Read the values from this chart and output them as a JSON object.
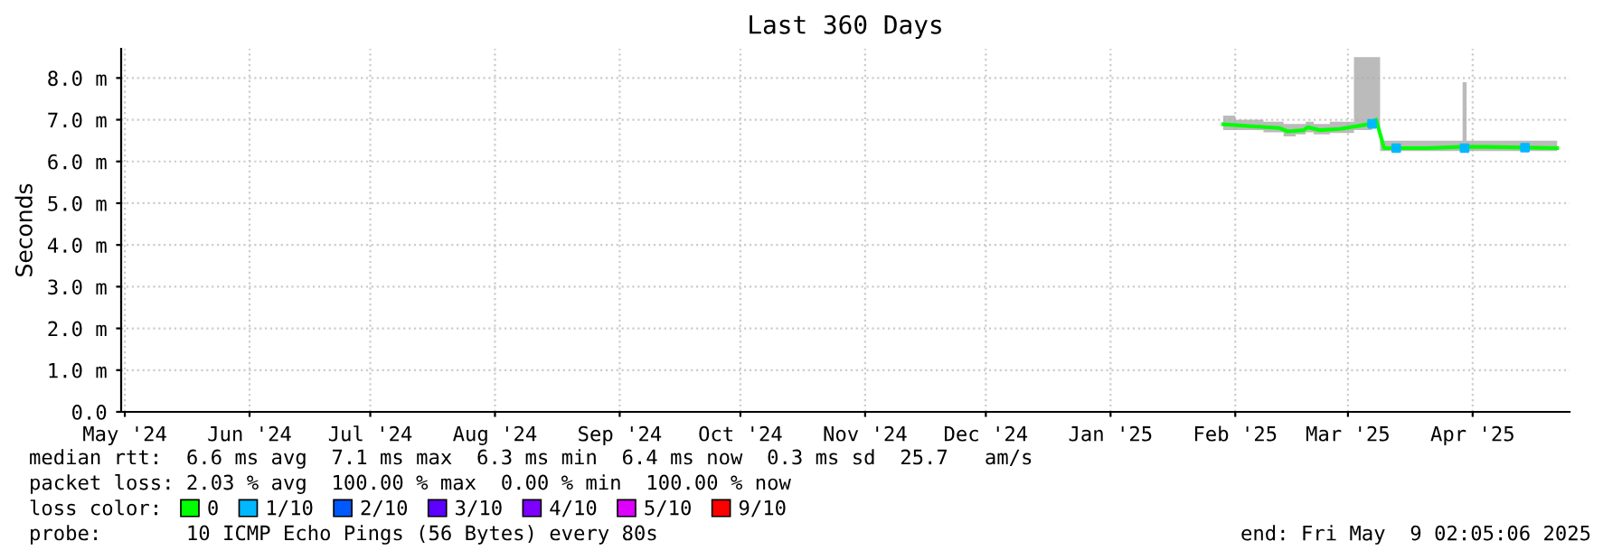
{
  "chart_data": {
    "type": "line",
    "title": "Last 360 Days",
    "ylabel": "Seconds",
    "legend_title": "loss color:",
    "xlim": [
      "2024-05-14T02:05",
      "2025-05-09T02:05"
    ],
    "xticks": [
      {
        "value": "2024-05-15",
        "label": "May '24"
      },
      {
        "value": "2024-06-15",
        "label": "Jun '24"
      },
      {
        "value": "2024-07-15",
        "label": "Jul '24"
      },
      {
        "value": "2024-08-15",
        "label": "Aug '24"
      },
      {
        "value": "2024-09-15",
        "label": "Sep '24"
      },
      {
        "value": "2024-10-15",
        "label": "Oct '24"
      },
      {
        "value": "2024-11-15",
        "label": "Nov '24"
      },
      {
        "value": "2024-12-15",
        "label": "Dec '24"
      },
      {
        "value": "2025-01-15",
        "label": "Jan '25"
      },
      {
        "value": "2025-02-15",
        "label": "Feb '25"
      },
      {
        "value": "2025-03-15",
        "label": "Mar '25"
      },
      {
        "value": "2025-04-15",
        "label": "Apr '25"
      }
    ],
    "ylim": [
      0,
      8.7
    ],
    "yticks": [
      {
        "value": 0,
        "label": "0.0"
      },
      {
        "value": 1,
        "label": "1.0 m"
      },
      {
        "value": 2,
        "label": "2.0 m"
      },
      {
        "value": 3,
        "label": "3.0 m"
      },
      {
        "value": 4,
        "label": "4.0 m"
      },
      {
        "value": 5,
        "label": "5.0 m"
      },
      {
        "value": 6,
        "label": "6.0 m"
      },
      {
        "value": 7,
        "label": "7.0 m"
      },
      {
        "value": 8,
        "label": "8.0 m"
      }
    ],
    "grid": true,
    "legend": "bottom left",
    "marker": "none",
    "line_style": "solid",
    "series": [
      {
        "name": "0",
        "color": "#00ff00",
        "x": [
          "2025-02-12",
          "2025-02-18",
          "2025-02-26",
          "2025-02-28",
          "2025-03-04",
          "2025-03-05",
          "2025-03-08",
          "2025-03-13",
          "2025-03-20",
          "2025-03-22",
          "2025-03-24",
          "2025-04-04",
          "2025-04-12",
          "2025-04-13",
          "2025-04-14",
          "2025-04-18",
          "2025-05-06"
        ],
        "values": [
          6.89,
          6.85,
          6.8,
          6.72,
          6.75,
          6.82,
          6.75,
          6.78,
          6.89,
          7.0,
          6.32,
          6.32,
          6.35,
          6.35,
          6.35,
          6.35,
          6.32
        ],
        "lower": [
          6.75,
          6.75,
          6.7,
          6.6,
          6.65,
          6.7,
          6.65,
          6.68,
          6.75,
          6.8,
          6.25,
          6.25,
          6.25,
          6.25,
          6.25,
          6.25,
          6.25
        ],
        "upper": [
          7.1,
          7.0,
          6.95,
          6.9,
          6.9,
          6.95,
          6.9,
          6.95,
          8.5,
          8.5,
          6.5,
          6.5,
          6.5,
          7.9,
          6.5,
          6.5,
          6.5
        ]
      },
      {
        "name": "1/10",
        "color": "#00b8ff",
        "type": "scatter",
        "marker": "square",
        "x": [
          "2025-03-21",
          "2025-03-27",
          "2025-04-13",
          "2025-04-28"
        ],
        "values": [
          6.9,
          6.32,
          6.32,
          6.33
        ]
      },
      {
        "name": "2/10",
        "color": "#0059ff",
        "type": "scatter"
      },
      {
        "name": "3/10",
        "color": "#5e00ff",
        "type": "scatter"
      },
      {
        "name": "4/10",
        "color": "#7e00ff",
        "type": "scatter"
      },
      {
        "name": "5/10",
        "color": "#dd00ff",
        "type": "scatter"
      },
      {
        "name": "9/10",
        "color": "#ff0000",
        "type": "scatter"
      }
    ],
    "annotations": [
      "median rtt:  6.6 ms avg  7.1 ms max  6.3 ms min  6.4 ms now  0.3 ms sd  25.7   am/s",
      "packet loss: 2.03 % avg  100.00 % max  0.00 % min  100.00 % now",
      "probe:       10 ICMP Echo Pings (56 Bytes) every 80s",
      "end: Fri May  9 02:05:06 2025"
    ]
  }
}
